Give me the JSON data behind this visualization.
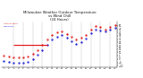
{
  "title": "Milwaukee Weather Outdoor Temperature\nvs Wind Chill\n(24 Hours)",
  "title_fontsize": 2.8,
  "bg_color": "#ffffff",
  "grid_color": "#888888",
  "hours": [
    1,
    2,
    3,
    4,
    5,
    6,
    7,
    8,
    9,
    10,
    11,
    12,
    13,
    14,
    15,
    16,
    17,
    18,
    19,
    20,
    21,
    22,
    23,
    24
  ],
  "temp": [
    5,
    4,
    3,
    2,
    3,
    4,
    8,
    14,
    22,
    30,
    36,
    40,
    42,
    38,
    33,
    29,
    32,
    36,
    44,
    50,
    48,
    45,
    49,
    51
  ],
  "windchill": [
    -3,
    -4,
    -5,
    -6,
    -5,
    -4,
    0,
    6,
    14,
    22,
    30,
    34,
    36,
    32,
    27,
    23,
    26,
    31,
    39,
    45,
    43,
    41,
    45,
    47
  ],
  "flat_temp_start": 3,
  "flat_temp_end": 10,
  "flat_temp_val": 22,
  "temp_color": "#dd0000",
  "windchill_color": "#0000cc",
  "flat_color": "#dd0000",
  "ylim_min": -12,
  "ylim_max": 56,
  "yticks": [
    -10,
    -5,
    0,
    5,
    10,
    15,
    20,
    25,
    30,
    35,
    40,
    45,
    50
  ],
  "xticks": [
    1,
    2,
    3,
    4,
    5,
    6,
    7,
    8,
    9,
    10,
    11,
    12,
    13,
    14,
    15,
    16,
    17,
    18,
    19,
    20,
    21,
    22,
    23,
    24
  ],
  "vgrid_positions": [
    3,
    5,
    7,
    9,
    11,
    13,
    15,
    17,
    19,
    21,
    23
  ]
}
